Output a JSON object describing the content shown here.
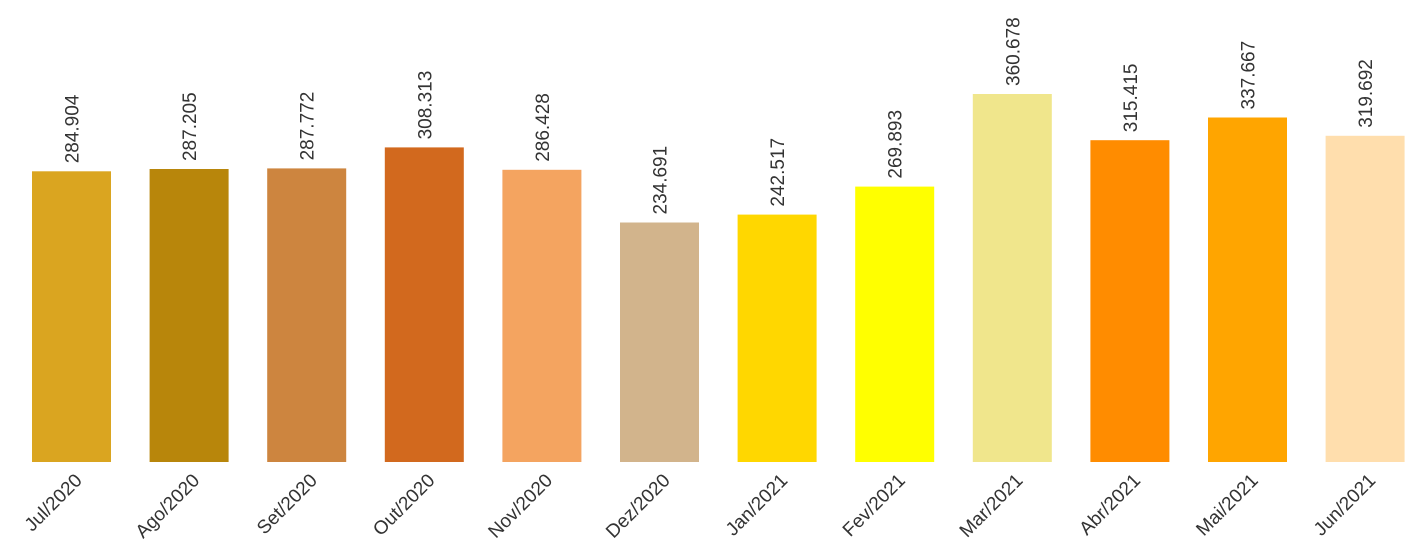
{
  "chart_data": {
    "type": "bar",
    "title": "",
    "xlabel": "",
    "ylabel": "",
    "ylim": [
      0,
      380
    ],
    "grid": false,
    "legend": "none",
    "categories": [
      "Jul/2020",
      "Ago/2020",
      "Set/2020",
      "Out/2020",
      "Nov/2020",
      "Dez/2020",
      "Jan/2021",
      "Fev/2021",
      "Mar/2021",
      "Abr/2021",
      "Mai/2021",
      "Jun/2021"
    ],
    "values": [
      284.904,
      287.205,
      287.772,
      308.313,
      286.428,
      234.691,
      242.517,
      269.893,
      360.678,
      315.415,
      337.667,
      319.692
    ],
    "value_labels": [
      "284.904",
      "287.205",
      "287.772",
      "308.313",
      "286.428",
      "234.691",
      "242.517",
      "269.893",
      "360.678",
      "315.415",
      "337.667",
      "319.692"
    ],
    "colors": [
      "#DAA520",
      "#B8860B",
      "#CD853F",
      "#D2691E",
      "#F4A460",
      "#D2B48C",
      "#FFD700",
      "#FFFF00",
      "#F0E68C",
      "#FF8C00",
      "#FFA500",
      "#FFDEAD"
    ]
  }
}
